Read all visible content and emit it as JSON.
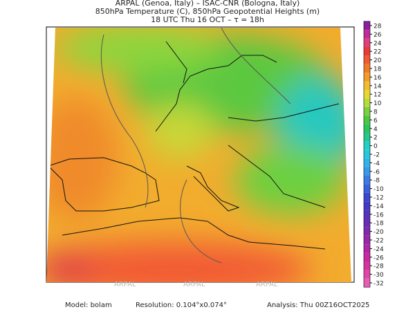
{
  "header": {
    "line1": "ARPAL (Genoa, Italy)  –  ISAC-CNR (Bologna, Italy)",
    "line2": "850hPa Temperature (C), 850hPa Geopotential Heights (m)",
    "line3": "18 UTC Thu 16 OCT  –  τ = 18h"
  },
  "colorbar": {
    "ticks": [
      28,
      26,
      24,
      22,
      20,
      18,
      16,
      14,
      12,
      10,
      8,
      6,
      4,
      2,
      0,
      -2,
      -4,
      -6,
      -8,
      -10,
      -12,
      -14,
      -16,
      -18,
      -20,
      -22,
      -24,
      -26,
      -28,
      -30,
      -32
    ],
    "colors": [
      "#8a1e9e",
      "#c02a9a",
      "#e0407a",
      "#e83a3a",
      "#f05a30",
      "#f07a28",
      "#f39a28",
      "#f2bc2c",
      "#e6d832",
      "#b4dc3a",
      "#7cd040",
      "#4cc840",
      "#2ec45c",
      "#22c88e",
      "#20d0c0",
      "#28c8dc",
      "#30b4e8",
      "#3a98e8",
      "#3a7ce4",
      "#3c60dc",
      "#3c46d0",
      "#4438c4",
      "#5432bc",
      "#6a2cb4",
      "#8028ae",
      "#9826a8",
      "#b026a4",
      "#c82aa0",
      "#d8349e",
      "#e046a8",
      "#e85cb6"
    ]
  },
  "footer": {
    "model": "Model: bolam",
    "resolution": "Resolution: 0.104°x0.074°",
    "analysis": "Analysis: Thu 00Z16OCT2025"
  },
  "watermark": "ARPAL"
}
